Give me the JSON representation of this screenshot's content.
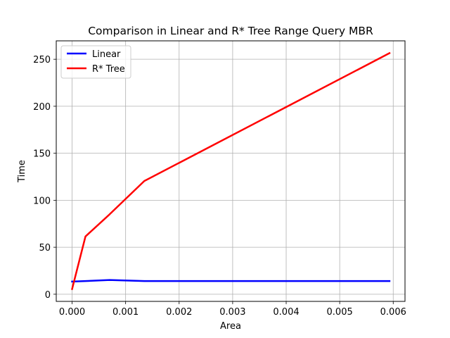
{
  "chart_data": {
    "type": "line",
    "title": "Comparison in Linear and R* Tree Range Query MBR",
    "xlabel": "Area",
    "ylabel": "Time",
    "xlim": [
      -0.000296,
      0.00622
    ],
    "ylim": [
      -7.6,
      269.6
    ],
    "xticks": [
      0.0,
      0.001,
      0.002,
      0.003,
      0.004,
      0.005,
      0.006
    ],
    "xtick_labels": [
      "0.000",
      "0.001",
      "0.002",
      "0.003",
      "0.004",
      "0.005",
      "0.006"
    ],
    "yticks": [
      0,
      50,
      100,
      150,
      200,
      250
    ],
    "ytick_labels": [
      "0",
      "50",
      "100",
      "150",
      "200",
      "250"
    ],
    "grid": true,
    "legend_position": "upper-left",
    "series": [
      {
        "name": "Linear",
        "color": "#0000ff",
        "x": [
          0.0,
          0.00025,
          0.0007,
          0.00135,
          0.00593
        ],
        "y": [
          13.5,
          14.0,
          15.2,
          14.0,
          14.0
        ]
      },
      {
        "name": "R* Tree",
        "color": "#ff0000",
        "x": [
          0.0,
          0.00025,
          0.0007,
          0.00135,
          0.00593
        ],
        "y": [
          5.5,
          61.5,
          85.0,
          120.5,
          256.5
        ]
      }
    ]
  }
}
